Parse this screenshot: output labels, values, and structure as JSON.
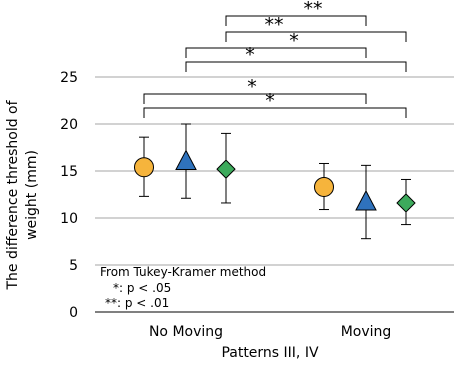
{
  "chart_data": {
    "type": "scatter",
    "xlabel": "Patterns III, IV",
    "ylabel_lines": [
      "The difference threshold of",
      "weight (mm)"
    ],
    "categories": [
      "No Moving",
      "Moving"
    ],
    "ylim": [
      0,
      25
    ],
    "yticks": [
      "0",
      "5",
      "10",
      "15",
      "20",
      "25"
    ],
    "grid": true,
    "series": [
      {
        "marker": "circle",
        "color": "#F6B43C",
        "means": [
          15.4,
          13.3
        ],
        "err_upper": [
          18.6,
          15.8
        ],
        "err_lower": [
          12.3,
          10.9
        ]
      },
      {
        "marker": "triangle",
        "color": "#2F72BC",
        "means": [
          15.9,
          11.6
        ],
        "err_upper": [
          20.0,
          15.6
        ],
        "err_lower": [
          12.1,
          7.8
        ]
      },
      {
        "marker": "diamond",
        "color": "#3DAA5C",
        "means": [
          15.2,
          11.6
        ],
        "err_upper": [
          19.0,
          14.1
        ],
        "err_lower": [
          11.6,
          9.3
        ]
      }
    ],
    "significance": [
      {
        "from": [
          0,
          0
        ],
        "to": [
          1,
          2
        ],
        "label": "*"
      },
      {
        "from": [
          0,
          0
        ],
        "to": [
          1,
          1
        ],
        "label": "*"
      },
      {
        "from": [
          0,
          1
        ],
        "to": [
          1,
          2
        ],
        "label": "*"
      },
      {
        "from": [
          0,
          1
        ],
        "to": [
          1,
          1
        ],
        "label": "*"
      },
      {
        "from": [
          0,
          2
        ],
        "to": [
          1,
          2
        ],
        "label": "**"
      },
      {
        "from": [
          0,
          2
        ],
        "to": [
          1,
          1
        ],
        "label": "**"
      }
    ],
    "annotation_lines": [
      "From Tukey-Kramer method",
      "*: p < .05",
      "**: p < .01"
    ]
  }
}
